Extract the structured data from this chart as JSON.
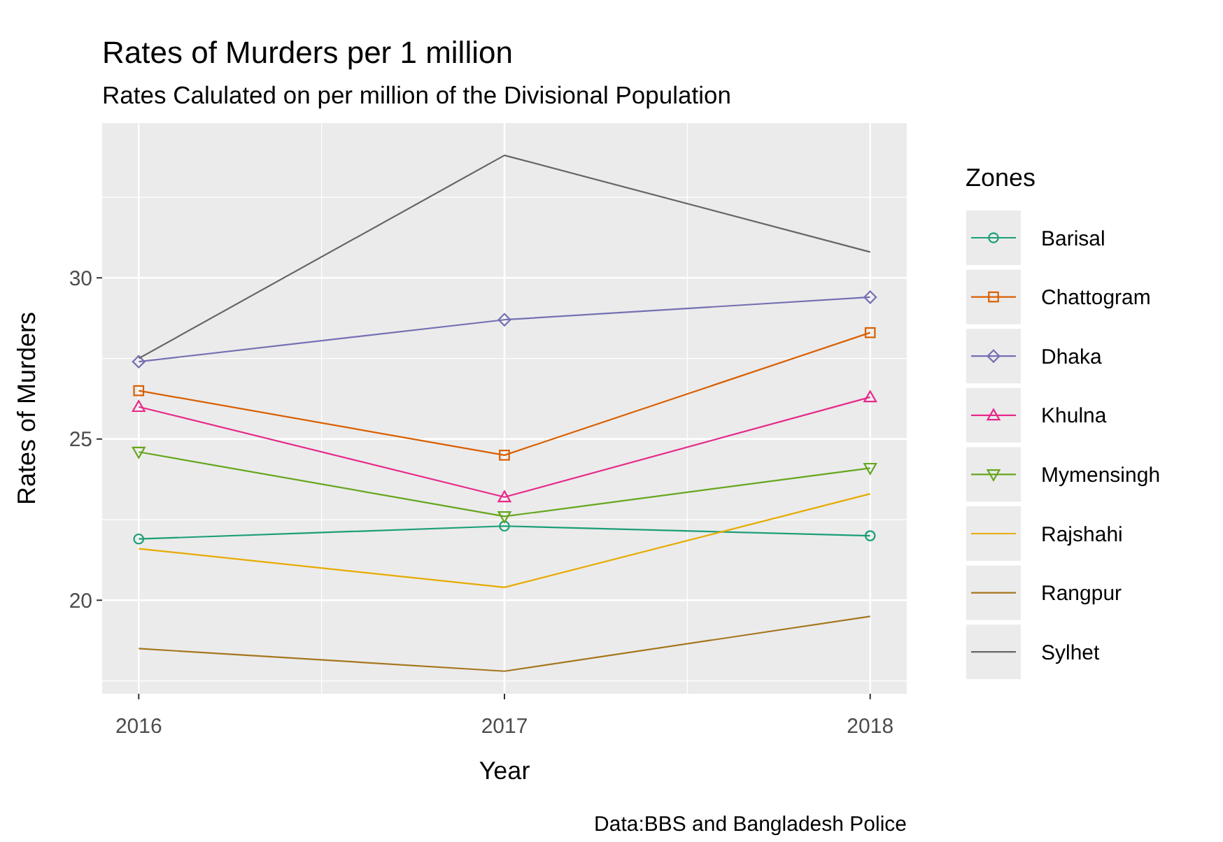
{
  "chart_data": {
    "type": "line",
    "title": "Rates of Murders per 1 million",
    "subtitle": "Rates Calulated on per million of the Divisional Population",
    "xlabel": "Year",
    "ylabel": "Rates of Murders",
    "legend_title": "Zones",
    "annotations": [
      "Data:BBS and Bangladesh Police"
    ],
    "x": [
      2016,
      2017,
      2018
    ],
    "xlim": [
      2015.9,
      2018.1
    ],
    "xticks": [
      2016,
      2017,
      2018
    ],
    "ylim": [
      17.1,
      34.8
    ],
    "yticks": [
      20,
      25,
      30
    ],
    "grid": true,
    "legend": "right",
    "series": [
      {
        "name": "Barisal",
        "color": "#1b9e77",
        "marker": "circle",
        "values": [
          21.9,
          22.3,
          22.0
        ]
      },
      {
        "name": "Chattogram",
        "color": "#d95f02",
        "marker": "square",
        "values": [
          26.5,
          24.5,
          28.3
        ]
      },
      {
        "name": "Dhaka",
        "color": "#7570b3",
        "marker": "diamond",
        "values": [
          27.4,
          28.7,
          29.4
        ]
      },
      {
        "name": "Khulna",
        "color": "#e7298a",
        "marker": "triangle",
        "values": [
          26.0,
          23.2,
          26.3
        ]
      },
      {
        "name": "Mymensingh",
        "color": "#66a61e",
        "marker": "triangle_down",
        "values": [
          24.6,
          22.6,
          24.1
        ]
      },
      {
        "name": "Rajshahi",
        "color": "#e6ab02",
        "marker": "none",
        "values": [
          21.6,
          20.4,
          23.3
        ]
      },
      {
        "name": "Rangpur",
        "color": "#a6761d",
        "marker": "none",
        "values": [
          18.5,
          17.8,
          19.5
        ]
      },
      {
        "name": "Sylhet",
        "color": "#666666",
        "marker": "none",
        "values": [
          27.5,
          33.8,
          30.8
        ]
      }
    ]
  }
}
